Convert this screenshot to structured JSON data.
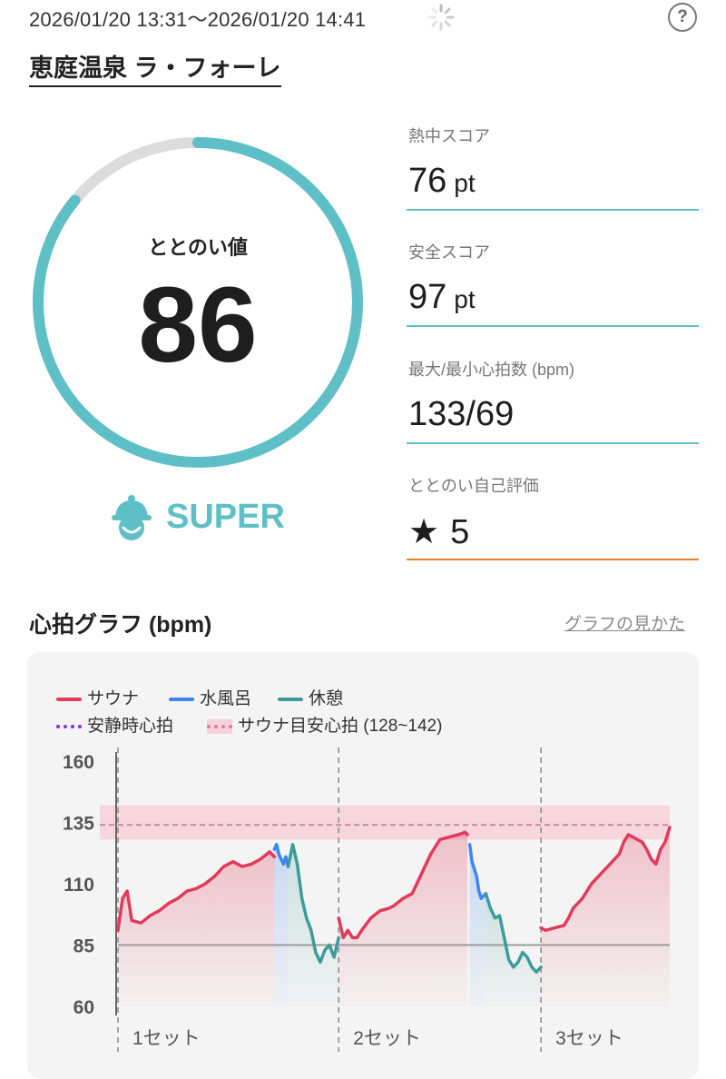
{
  "header": {
    "session_time": "2026/01/20 13:31～2026/01/20 14:41",
    "help_label": "?"
  },
  "facility": {
    "name": "恵庭温泉 ラ・フォーレ"
  },
  "score": {
    "label": "ととのい値",
    "value": "86",
    "value_num": 86,
    "max": 100,
    "rank": "SUPER",
    "accent": "#5ec0c6"
  },
  "metrics": [
    {
      "label": "熱中スコア",
      "value": "76",
      "unit": "pt",
      "line_color": "#5ec0c6"
    },
    {
      "label": "安全スコア",
      "value": "97",
      "unit": "pt",
      "line_color": "#5ec0c6"
    },
    {
      "label": "最大/最小心拍数 (bpm)",
      "value": "133/69",
      "unit": "",
      "line_color": "#5ec0c6"
    },
    {
      "label": "ととのい自己評価",
      "value": "5",
      "unit": "",
      "icon": "star-icon",
      "star": "★",
      "line_color": "#ef7d2a"
    }
  ],
  "graph": {
    "title": "心拍グラフ (bpm)",
    "help_link": "グラフの見かた",
    "legend": [
      {
        "label": "サウナ",
        "color": "#e23a5c",
        "style": "line"
      },
      {
        "label": "水風呂",
        "color": "#3d86f0",
        "style": "line"
      },
      {
        "label": "休憩",
        "color": "#3d9c9a",
        "style": "line"
      },
      {
        "label": "安静時心拍",
        "color": "#7b2ff0",
        "style": "dotted"
      },
      {
        "label": "サウナ目安心拍 (128~142)",
        "color": "#e87894",
        "style": "dotted-band"
      }
    ]
  },
  "chart_data": {
    "type": "line",
    "ylim": [
      60,
      160
    ],
    "yticks": [
      160,
      135,
      110,
      85,
      60
    ],
    "xlim": [
      0,
      240
    ],
    "target_band": [
      128,
      142
    ],
    "target_line": 134,
    "resting_line": 85,
    "set_markers": [
      {
        "x": 0,
        "label": "1セット"
      },
      {
        "x": 96,
        "label": "2セット"
      },
      {
        "x": 184,
        "label": "3セット"
      }
    ],
    "series": [
      {
        "name": "サウナ",
        "color": "#e23a5c",
        "points": [
          [
            0,
            91
          ],
          [
            2,
            104
          ],
          [
            4,
            107
          ],
          [
            6,
            95
          ],
          [
            10,
            94
          ],
          [
            14,
            97
          ],
          [
            18,
            99
          ],
          [
            22,
            102
          ],
          [
            26,
            104
          ],
          [
            30,
            107
          ],
          [
            34,
            108
          ],
          [
            38,
            110
          ],
          [
            42,
            113
          ],
          [
            46,
            117
          ],
          [
            50,
            119
          ],
          [
            54,
            117
          ],
          [
            58,
            118
          ],
          [
            62,
            120
          ],
          [
            66,
            123
          ],
          [
            68,
            121
          ],
          [
            96,
            96
          ],
          [
            98,
            88
          ],
          [
            100,
            91
          ],
          [
            102,
            88
          ],
          [
            104,
            88
          ],
          [
            106,
            91
          ],
          [
            110,
            96
          ],
          [
            114,
            99
          ],
          [
            118,
            100
          ],
          [
            120,
            101
          ],
          [
            124,
            104
          ],
          [
            128,
            106
          ],
          [
            132,
            114
          ],
          [
            134,
            118
          ],
          [
            136,
            122
          ],
          [
            138,
            125
          ],
          [
            140,
            128
          ],
          [
            144,
            129
          ],
          [
            148,
            130
          ],
          [
            151,
            131
          ],
          [
            152,
            130
          ],
          [
            184,
            92
          ],
          [
            186,
            91
          ],
          [
            190,
            92
          ],
          [
            194,
            93
          ],
          [
            196,
            96
          ],
          [
            198,
            100
          ],
          [
            202,
            104
          ],
          [
            206,
            110
          ],
          [
            210,
            114
          ],
          [
            214,
            118
          ],
          [
            218,
            122
          ],
          [
            220,
            127
          ],
          [
            222,
            130
          ],
          [
            224,
            129
          ],
          [
            226,
            128
          ],
          [
            228,
            127
          ],
          [
            230,
            124
          ],
          [
            232,
            120
          ],
          [
            234,
            118
          ],
          [
            236,
            124
          ],
          [
            238,
            127
          ],
          [
            240,
            133
          ]
        ]
      },
      {
        "name": "水風呂",
        "color": "#3d86f0",
        "points": [
          [
            68,
            124
          ],
          [
            69,
            126
          ],
          [
            70,
            122
          ],
          [
            71,
            120
          ],
          [
            72,
            118
          ],
          [
            73,
            121
          ],
          [
            74,
            117
          ],
          [
            153,
            126
          ],
          [
            154,
            119
          ],
          [
            156,
            113
          ],
          [
            157,
            107
          ],
          [
            158,
            104
          ],
          [
            160,
            106
          ]
        ]
      },
      {
        "name": "休憩",
        "color": "#3d9c9a",
        "points": [
          [
            74,
            117
          ],
          [
            76,
            126
          ],
          [
            78,
            118
          ],
          [
            80,
            104
          ],
          [
            82,
            96
          ],
          [
            84,
            91
          ],
          [
            86,
            82
          ],
          [
            88,
            78
          ],
          [
            90,
            83
          ],
          [
            92,
            85
          ],
          [
            94,
            80
          ],
          [
            96,
            88
          ],
          [
            98,
            98
          ],
          [
            100,
            113
          ],
          [
            102,
            119
          ],
          [
            104,
            118
          ],
          [
            106,
            107
          ],
          [
            108,
            95
          ],
          [
            110,
            88
          ],
          [
            112,
            84
          ],
          [
            114,
            79
          ],
          [
            116,
            75
          ],
          [
            118,
            73
          ],
          [
            120,
            78
          ],
          [
            124,
            79
          ],
          [
            128,
            79
          ],
          [
            130,
            82
          ],
          [
            132,
            81
          ],
          [
            134,
            84
          ],
          [
            136,
            88
          ],
          [
            160,
            106
          ],
          [
            162,
            100
          ],
          [
            164,
            96
          ],
          [
            166,
            97
          ],
          [
            168,
            88
          ],
          [
            170,
            79
          ],
          [
            172,
            76
          ],
          [
            174,
            78
          ],
          [
            176,
            82
          ],
          [
            178,
            80
          ],
          [
            180,
            76
          ],
          [
            182,
            74
          ],
          [
            184,
            76
          ],
          [
            188,
            76
          ],
          [
            190,
            75
          ],
          [
            192,
            77
          ],
          [
            194,
            75
          ],
          [
            196,
            84
          ],
          [
            198,
            92
          ],
          [
            200,
            90
          ],
          [
            202,
            92
          ]
        ]
      }
    ],
    "sauna_sets_x": [
      [
        0,
        68
      ],
      [
        96,
        152
      ],
      [
        184,
        240
      ]
    ],
    "cold_x": [
      [
        68,
        74
      ],
      [
        152,
        160
      ]
    ],
    "rest_x": [
      [
        74,
        96
      ],
      [
        160,
        184
      ]
    ]
  }
}
